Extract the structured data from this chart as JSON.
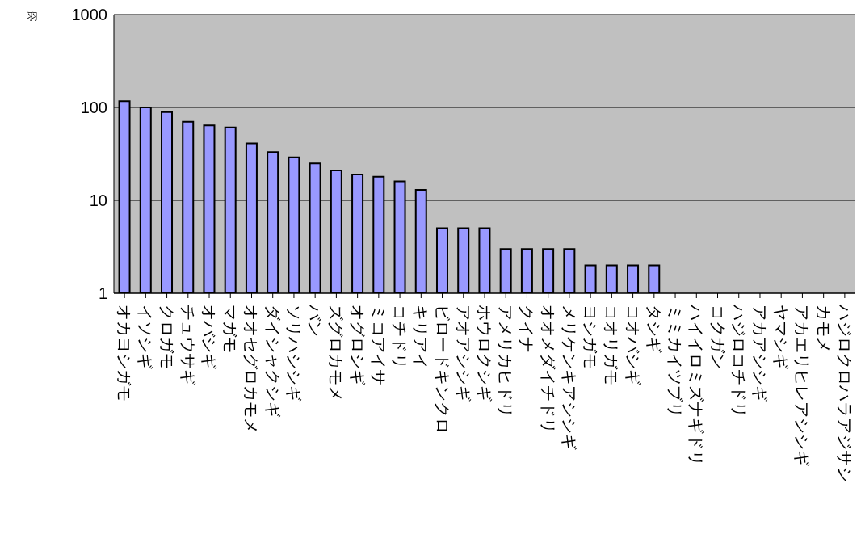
{
  "chart_data": {
    "type": "bar",
    "ylabel": "羽",
    "categories": [
      "オカヨシガモ",
      "イソシギ",
      "クロガモ",
      "チュウサギ",
      "オバシギ",
      "マガモ",
      "オオセグロカモメ",
      "ダイシャクシギ",
      "ソリハシシギ",
      "バン",
      "ズグロカモメ",
      "オグロシギ",
      "ミコアイサ",
      "コチドリ",
      "キリアイ",
      "ビロードキンクロ",
      "アオアシシギ",
      "ホウロクシギ",
      "アメリカヒドリ",
      "クイナ",
      "オオメダイチドリ",
      "メリケンキアシシギ",
      "ヨシガモ",
      "コオリガモ",
      "コオバシギ",
      "タシギ",
      "ミミカイツブリ",
      "ハイイロミズナギドリ",
      "コクガン",
      "ハジロコチドリ",
      "アカアシシギ",
      "ヤマシギ",
      "アカエリヒレアシシギ",
      "カモメ",
      "ハジロクロハラアジサシ"
    ],
    "values": [
      117,
      100,
      89,
      70,
      64,
      61,
      41,
      33,
      29,
      25,
      21,
      19,
      18,
      16,
      13,
      5,
      5,
      5,
      3,
      3,
      3,
      3,
      2,
      2,
      2,
      2,
      null,
      null,
      null,
      null,
      null,
      null,
      null,
      null,
      null
    ],
    "color": "#9999ff",
    "log": true,
    "ylim": [
      1,
      1000
    ],
    "yticks": [
      1,
      10,
      100,
      1000
    ],
    "grid": "y"
  }
}
